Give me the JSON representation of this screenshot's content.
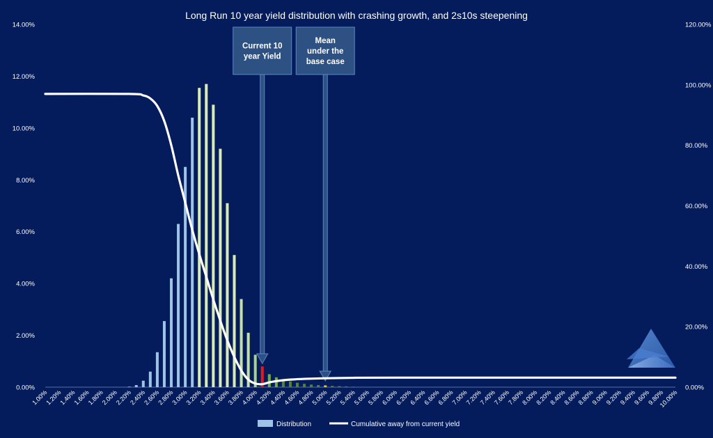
{
  "chart_data": {
    "type": "bar",
    "title": "Long Run 10 year yield distribution with crashing growth, and 2s10s steepening",
    "x_range": [
      1.0,
      10.0
    ],
    "x_step": 0.1,
    "x_tick_step": 0.2,
    "x_tick_format": "percent_2dp",
    "y_left": {
      "min": 0,
      "max": 14,
      "step": 2,
      "format": "percent_2dp"
    },
    "y_right": {
      "min": 0,
      "max": 120,
      "step": 20,
      "format": "percent_2dp"
    },
    "series": [
      {
        "name": "Distribution",
        "type": "bar",
        "axis": "left",
        "points": [
          {
            "x": 2.2,
            "y": 0.02,
            "color": "#9dc3e6"
          },
          {
            "x": 2.3,
            "y": 0.08,
            "color": "#9dc3e6"
          },
          {
            "x": 2.4,
            "y": 0.25,
            "color": "#9dc3e6"
          },
          {
            "x": 2.5,
            "y": 0.6,
            "color": "#9dc3e6"
          },
          {
            "x": 2.6,
            "y": 1.35,
            "color": "#9dc3e6"
          },
          {
            "x": 2.7,
            "y": 2.55,
            "color": "#9dc3e6"
          },
          {
            "x": 2.8,
            "y": 4.2,
            "color": "#9dc3e6"
          },
          {
            "x": 2.9,
            "y": 6.3,
            "color": "#9dc3e6"
          },
          {
            "x": 3.0,
            "y": 8.5,
            "color": "#9dc3e6"
          },
          {
            "x": 3.1,
            "y": 10.4,
            "color": "#9dc3e6"
          },
          {
            "x": 3.2,
            "y": 11.55,
            "color": "#d9ebb5"
          },
          {
            "x": 3.3,
            "y": 11.7,
            "color": "#d9ebb5"
          },
          {
            "x": 3.4,
            "y": 10.9,
            "color": "#d9ebb5"
          },
          {
            "x": 3.5,
            "y": 9.2,
            "color": "#d9ebb5"
          },
          {
            "x": 3.6,
            "y": 7.1,
            "color": "#d9ebb5"
          },
          {
            "x": 3.7,
            "y": 5.1,
            "color": "#d9ebb5"
          },
          {
            "x": 3.8,
            "y": 3.4,
            "color": "#c5e0a5"
          },
          {
            "x": 3.9,
            "y": 2.1,
            "color": "#c5e0a5"
          },
          {
            "x": 4.0,
            "y": 1.25,
            "color": "#a9d18e"
          },
          {
            "x": 4.1,
            "y": 0.8,
            "color": "#e31a1c"
          },
          {
            "x": 4.2,
            "y": 0.5,
            "color": "#70ad47"
          },
          {
            "x": 4.3,
            "y": 0.38,
            "color": "#70ad47"
          },
          {
            "x": 4.4,
            "y": 0.28,
            "color": "#548235"
          },
          {
            "x": 4.5,
            "y": 0.22,
            "color": "#548235"
          },
          {
            "x": 4.6,
            "y": 0.17,
            "color": "#548235"
          },
          {
            "x": 4.7,
            "y": 0.13,
            "color": "#548235"
          },
          {
            "x": 4.8,
            "y": 0.1,
            "color": "#548235"
          },
          {
            "x": 4.9,
            "y": 0.08,
            "color": "#548235"
          },
          {
            "x": 5.0,
            "y": 0.07,
            "color": "#ffc000"
          },
          {
            "x": 5.1,
            "y": 0.05,
            "color": "#548235"
          },
          {
            "x": 5.2,
            "y": 0.04,
            "color": "#548235"
          },
          {
            "x": 5.3,
            "y": 0.03,
            "color": "#548235"
          },
          {
            "x": 5.4,
            "y": 0.02,
            "color": "#548235"
          }
        ]
      },
      {
        "name": "Cumulative away from current yield",
        "type": "line",
        "axis": "right",
        "color": "#ffffff",
        "points": [
          [
            1.0,
            97
          ],
          [
            2.2,
            97
          ],
          [
            2.4,
            96.5
          ],
          [
            2.5,
            95.5
          ],
          [
            2.6,
            93
          ],
          [
            2.7,
            88
          ],
          [
            2.8,
            80
          ],
          [
            2.9,
            70
          ],
          [
            3.0,
            61
          ],
          [
            3.1,
            52
          ],
          [
            3.2,
            44
          ],
          [
            3.3,
            36.5
          ],
          [
            3.4,
            29
          ],
          [
            3.5,
            22
          ],
          [
            3.6,
            15.5
          ],
          [
            3.7,
            10
          ],
          [
            3.8,
            5.5
          ],
          [
            3.9,
            2.5
          ],
          [
            4.0,
            1.2
          ],
          [
            4.1,
            1.0
          ],
          [
            4.2,
            1.6
          ],
          [
            4.3,
            2.0
          ],
          [
            4.4,
            2.3
          ],
          [
            4.5,
            2.5
          ],
          [
            4.7,
            2.75
          ],
          [
            5.0,
            2.95
          ],
          [
            5.4,
            3.1
          ],
          [
            6.0,
            3.15
          ],
          [
            10.0,
            3.15
          ]
        ]
      }
    ],
    "annotations": [
      {
        "text_lines": [
          "Current 10",
          "year Yield"
        ],
        "x": 4.1
      },
      {
        "text_lines": [
          "Mean",
          "under the",
          "base case"
        ],
        "x": 5.0
      }
    ],
    "legend": {
      "position": "bottom-center",
      "items": [
        "Distribution",
        "Cumulative away from current yield"
      ]
    },
    "grid": false
  }
}
